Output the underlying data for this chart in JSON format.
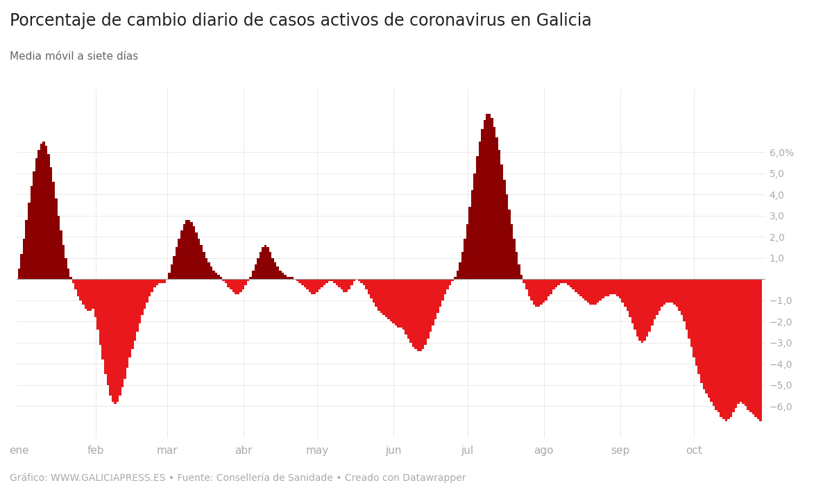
{
  "title": "Porcentaje de cambio diario de casos activos de coronavirus en Galicia",
  "subtitle": "Media móvil a siete días",
  "footer": "Gráfico: WWW.GALICIAPRESS.ES • Fuente: Consellería de Sanidade • Creado con Datawrapper",
  "title_fontsize": 17,
  "subtitle_fontsize": 11,
  "footer_fontsize": 10,
  "color_positive": "#8B0000",
  "color_negative": "#E8181C",
  "background_color": "#ffffff",
  "yticks": [
    6.0,
    5.0,
    4.0,
    3.0,
    2.0,
    1.0,
    -1.0,
    -2.0,
    -3.0,
    -4.0,
    -5.0,
    -6.0
  ],
  "ylim": [
    -7.5,
    9.0
  ],
  "month_labels": [
    "ene",
    "feb",
    "mar",
    "abr",
    "may",
    "jun",
    "jul",
    "ago",
    "sep",
    "oct"
  ],
  "month_positions": [
    0,
    31,
    60,
    91,
    121,
    152,
    182,
    213,
    244,
    274
  ],
  "values": [
    0.5,
    1.2,
    1.9,
    2.8,
    3.6,
    4.4,
    5.1,
    5.7,
    6.1,
    6.4,
    6.5,
    6.3,
    5.9,
    5.3,
    4.6,
    3.8,
    3.0,
    2.3,
    1.6,
    1.0,
    0.5,
    0.1,
    -0.2,
    -0.5,
    -0.8,
    -1.0,
    -1.2,
    -1.4,
    -1.5,
    -1.5,
    -1.4,
    -1.8,
    -2.4,
    -3.1,
    -3.8,
    -4.5,
    -5.0,
    -5.5,
    -5.8,
    -5.9,
    -5.8,
    -5.5,
    -5.1,
    -4.7,
    -4.2,
    -3.7,
    -3.3,
    -2.9,
    -2.5,
    -2.1,
    -1.7,
    -1.4,
    -1.1,
    -0.8,
    -0.6,
    -0.4,
    -0.3,
    -0.2,
    -0.2,
    -0.2,
    0.0,
    0.3,
    0.7,
    1.1,
    1.5,
    1.9,
    2.3,
    2.6,
    2.8,
    2.8,
    2.7,
    2.5,
    2.2,
    1.9,
    1.6,
    1.3,
    1.0,
    0.8,
    0.6,
    0.4,
    0.3,
    0.2,
    0.1,
    -0.1,
    -0.2,
    -0.4,
    -0.5,
    -0.6,
    -0.7,
    -0.7,
    -0.6,
    -0.5,
    -0.3,
    -0.1,
    0.1,
    0.4,
    0.7,
    1.0,
    1.3,
    1.5,
    1.6,
    1.5,
    1.3,
    1.0,
    0.8,
    0.6,
    0.4,
    0.3,
    0.2,
    0.1,
    0.1,
    0.1,
    0.0,
    -0.1,
    -0.2,
    -0.3,
    -0.4,
    -0.5,
    -0.6,
    -0.7,
    -0.7,
    -0.6,
    -0.5,
    -0.4,
    -0.3,
    -0.2,
    -0.1,
    -0.1,
    -0.2,
    -0.3,
    -0.4,
    -0.5,
    -0.6,
    -0.6,
    -0.5,
    -0.3,
    -0.1,
    0.0,
    -0.1,
    -0.2,
    -0.3,
    -0.5,
    -0.7,
    -0.9,
    -1.1,
    -1.3,
    -1.5,
    -1.6,
    -1.7,
    -1.8,
    -1.9,
    -2.0,
    -2.1,
    -2.2,
    -2.3,
    -2.3,
    -2.4,
    -2.6,
    -2.8,
    -3.0,
    -3.2,
    -3.3,
    -3.4,
    -3.4,
    -3.3,
    -3.1,
    -2.8,
    -2.5,
    -2.2,
    -1.9,
    -1.6,
    -1.3,
    -1.0,
    -0.7,
    -0.5,
    -0.3,
    -0.1,
    0.1,
    0.4,
    0.8,
    1.3,
    1.9,
    2.6,
    3.4,
    4.2,
    5.0,
    5.8,
    6.5,
    7.1,
    7.5,
    7.8,
    7.8,
    7.6,
    7.2,
    6.7,
    6.1,
    5.4,
    4.7,
    4.0,
    3.3,
    2.6,
    1.9,
    1.3,
    0.7,
    0.2,
    -0.2,
    -0.5,
    -0.8,
    -1.0,
    -1.2,
    -1.3,
    -1.3,
    -1.2,
    -1.1,
    -1.0,
    -0.8,
    -0.7,
    -0.5,
    -0.4,
    -0.3,
    -0.2,
    -0.2,
    -0.2,
    -0.3,
    -0.4,
    -0.5,
    -0.6,
    -0.7,
    -0.8,
    -0.9,
    -1.0,
    -1.1,
    -1.2,
    -1.2,
    -1.2,
    -1.1,
    -1.0,
    -0.9,
    -0.8,
    -0.8,
    -0.7,
    -0.7,
    -0.7,
    -0.8,
    -0.9,
    -1.1,
    -1.3,
    -1.5,
    -1.8,
    -2.1,
    -2.4,
    -2.7,
    -2.9,
    -3.0,
    -2.9,
    -2.7,
    -2.5,
    -2.2,
    -1.9,
    -1.7,
    -1.5,
    -1.3,
    -1.2,
    -1.1,
    -1.1,
    -1.1,
    -1.2,
    -1.3,
    -1.5,
    -1.7,
    -2.0,
    -2.4,
    -2.8,
    -3.2,
    -3.7,
    -4.1,
    -4.5,
    -4.9,
    -5.2,
    -5.4,
    -5.6,
    -5.8,
    -6.0,
    -6.2,
    -6.3,
    -6.5,
    -6.6,
    -6.7,
    -6.6,
    -6.5,
    -6.3,
    -6.1,
    -5.9,
    -5.8,
    -5.9,
    -6.0,
    -6.2,
    -6.3,
    -6.4,
    -6.5,
    -6.6,
    -6.7
  ]
}
